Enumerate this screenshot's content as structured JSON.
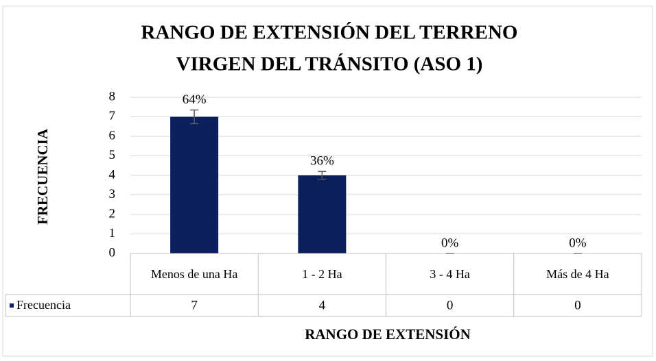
{
  "chart_data": {
    "type": "bar",
    "title": [
      "RANGO DE EXTENSIÓN DEL TERRENO",
      "VIRGEN DEL TRÁNSITO (ASO 1)"
    ],
    "x_label": "RANGO DE EXTENSIÓN",
    "y_label": "FRECUENCIA",
    "categories": [
      "Menos de una Ha",
      "1 - 2 Ha",
      "3 - 4 Ha",
      "Más de 4 Ha"
    ],
    "series": [
      {
        "name": "Frecuencia",
        "color": "#0b1f5c",
        "values": [
          7,
          4,
          0,
          0
        ],
        "value_labels": [
          "64%",
          "36%",
          "0%",
          "0%"
        ],
        "errors": [
          0.35,
          0.2,
          0,
          0
        ]
      }
    ],
    "ylim": [
      0,
      8
    ],
    "yticks": [
      0,
      1,
      2,
      3,
      4,
      5,
      6,
      7,
      8
    ],
    "grid": true
  }
}
